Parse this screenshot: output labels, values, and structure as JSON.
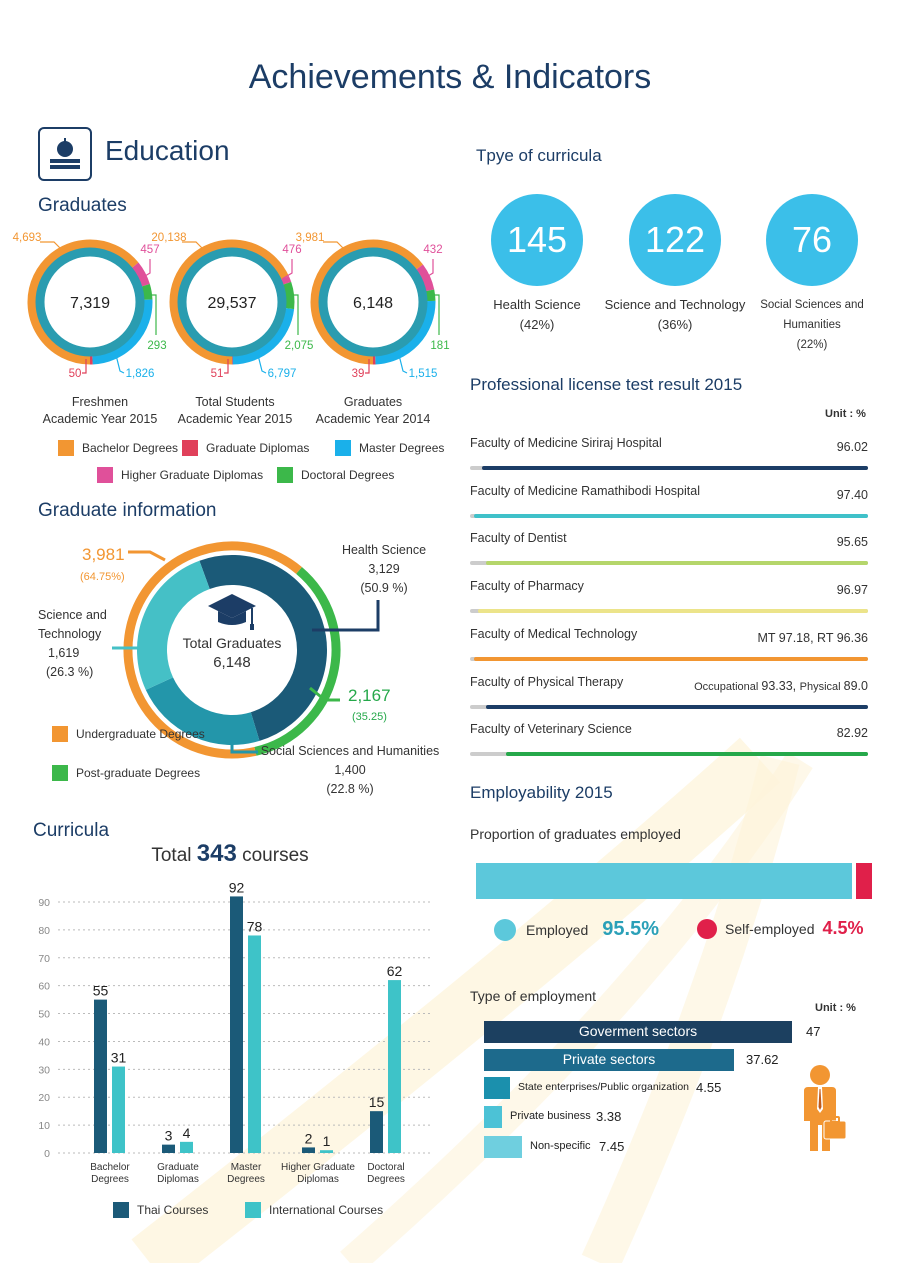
{
  "page_title": "Achievements & Indicators",
  "section_title": "Education",
  "graduates": {
    "title": "Graduates",
    "rings": [
      {
        "center": "7,319",
        "caption1": "Freshmen",
        "caption2": "Academic Year 2015",
        "labels": {
          "bachelor": "4,693",
          "higher": "457",
          "doctoral": "293",
          "master": "1,826",
          "diploma": "50"
        },
        "values": [
          4693,
          50,
          1826,
          457,
          293
        ]
      },
      {
        "center": "29,537",
        "caption1": "Total Students",
        "caption2": "Academic Year 2015",
        "labels": {
          "bachelor": "20,138",
          "higher": "476",
          "doctoral": "2,075",
          "master": "6,797",
          "diploma": "51"
        },
        "values": [
          20138,
          51,
          6797,
          476,
          2075
        ]
      },
      {
        "center": "6,148",
        "caption1": "Graduates",
        "caption2": "Academic Year 2014",
        "labels": {
          "bachelor": "3,981",
          "higher": "432",
          "doctoral": "181",
          "master": "1,515",
          "diploma": "39"
        },
        "values": [
          3981,
          39,
          1515,
          432,
          181
        ]
      }
    ],
    "legend": [
      "Bachelor Degrees",
      "Graduate Diplomas",
      "Master Degrees",
      "Higher Graduate Diplomas",
      "Doctoral Degrees"
    ],
    "colors": {
      "bachelor": "#f29632",
      "diploma": "#e0405a",
      "master": "#1ab0ea",
      "higher": "#e0509a",
      "doctoral": "#3cb84a",
      "inner": "#2a9cb0"
    }
  },
  "grad_info": {
    "title": "Graduate information",
    "center1": "Total Graduates",
    "center2": "6,148",
    "under_value": "3,981",
    "under_pct": "(64.75%)",
    "post_value": "2,167",
    "post_pct": "(35.25)",
    "health": {
      "name": "Health Science",
      "value": "3,129",
      "pct": "(50.9 %)"
    },
    "science": {
      "name1": "Science and",
      "name2": "Technology",
      "value": "1,619",
      "pct": "(26.3 %)"
    },
    "social": {
      "name": "Social Sciences and Humanities",
      "value": "1,400",
      "pct": "(22.8 %)"
    },
    "legend": [
      "Undergraduate Degrees",
      "Post-graduate Degrees"
    ],
    "values": {
      "undergraduate": 3981,
      "postgraduate": 2167,
      "health": 3129,
      "science": 1619,
      "social": 1400
    }
  },
  "curricula_types": {
    "title": "Tpye of curricula",
    "items": [
      {
        "value": "145",
        "name1": "Health Science",
        "name2": "(42%)",
        "name3": ""
      },
      {
        "value": "122",
        "name1": "Science and Technology",
        "name2": "(36%)",
        "name3": ""
      },
      {
        "value": "76",
        "name1": "Social Sciences and",
        "name2": "Humanities",
        "name3": "(22%)"
      }
    ]
  },
  "license": {
    "title": "Professional license test result 2015",
    "unit": "Unit : %",
    "rows": [
      {
        "name": "Faculty of Medicine Siriraj Hospital",
        "value": "96.02",
        "color": "#1c3d66",
        "fill": 0.97
      },
      {
        "name": "Faculty of Medicine Ramathibodi Hospital",
        "value": "97.40",
        "color": "#3fc1c9",
        "fill": 0.99
      },
      {
        "name": "Faculty of Dentist",
        "value": "95.65",
        "color": "#b5d66b",
        "fill": 0.96
      },
      {
        "name": "Faculty of Pharmacy",
        "value": "96.97",
        "color": "#ece48a",
        "fill": 0.98
      },
      {
        "name": "Faculty of Medical Technology",
        "value": "MT 97.18, RT 96.36",
        "color": "#f29632",
        "fill": 0.99
      },
      {
        "name": "Faculty of Physical Therapy",
        "value_prefix1": "Occupational",
        "value_num1": "93.33,",
        "value_prefix2": "Physical",
        "value_num2": "89.0",
        "color": "#1c3d66",
        "fill": 0.96
      },
      {
        "name": "Faculty of Veterinary Science",
        "value": "82.92",
        "color": "#25a84a",
        "fill": 0.91
      }
    ]
  },
  "employ": {
    "title": "Employability 2015",
    "subtitle": "Proportion of graduates employed",
    "employed_label": "Employed",
    "employed_value": "95.5%",
    "self_label": "Self-employed",
    "self_value": "4.5%",
    "employed_fraction": 0.955,
    "colors": {
      "employed": "#5cc8db",
      "self": "#e0204a"
    },
    "type_title": "Type of employment",
    "unit": "Unit : %",
    "types": [
      {
        "label": "Goverment sectors",
        "value": "47",
        "num": 47,
        "color": "#1c4060"
      },
      {
        "label": "Private sectors",
        "value": "37.62",
        "num": 37.62,
        "color": "#1d6a8c"
      },
      {
        "label": "State enterprises/Public organization",
        "value": "4.55",
        "num": 4.55,
        "color": "#1b90ad"
      },
      {
        "label": "Private business",
        "value": "3.38",
        "num": 3.38,
        "color": "#4cc2d6"
      },
      {
        "label": "Non-specific",
        "value": "7.45",
        "num": 7.45,
        "color": "#6fcfdf"
      }
    ]
  },
  "curricula": {
    "title": "Curricula",
    "total_prefix": "Total",
    "total_value": "343",
    "total_suffix": "courses"
  },
  "chart_data": {
    "type": "bar",
    "categories": [
      [
        "Bachelor",
        "Degrees"
      ],
      [
        "Graduate",
        "Diplomas"
      ],
      [
        "Master",
        "Degrees"
      ],
      [
        "Higher Graduate",
        "Diplomas"
      ],
      [
        "Doctoral",
        "Degrees"
      ]
    ],
    "series": [
      {
        "name": "Thai Courses",
        "values": [
          55,
          3,
          92,
          2,
          15
        ],
        "color": "#1b5a78"
      },
      {
        "name": "International Courses",
        "values": [
          31,
          4,
          78,
          1,
          62
        ],
        "color": "#3ec3c8"
      }
    ],
    "ylim": [
      0,
      90
    ],
    "yticks": [
      0,
      10,
      20,
      30,
      40,
      50,
      60,
      70,
      80,
      90
    ],
    "grid": true,
    "legend_position": "bottom"
  }
}
